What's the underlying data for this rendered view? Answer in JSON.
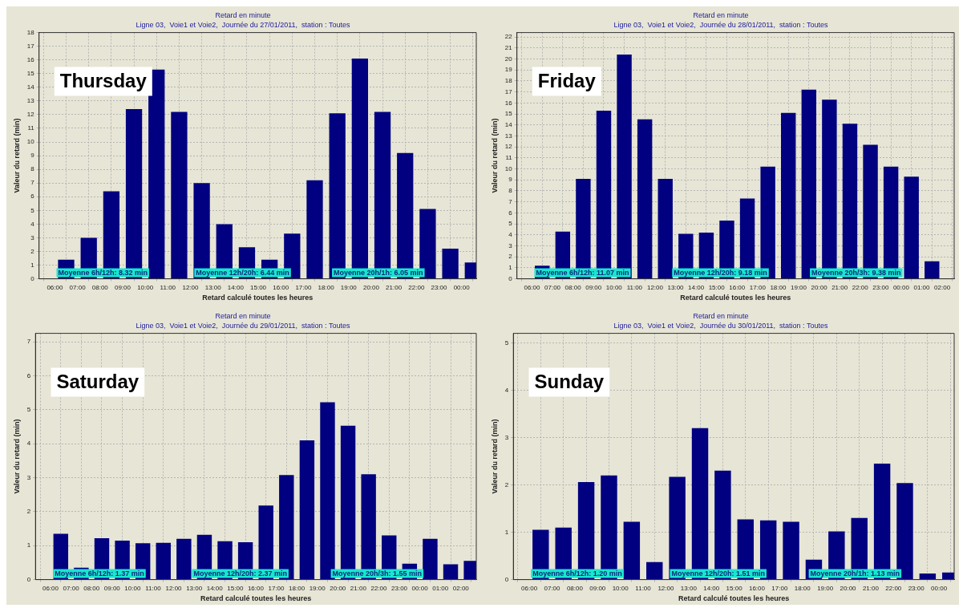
{
  "chart_data": [
    {
      "type": "bar",
      "title": "Retard en minute",
      "subtitle": "Ligne 03,  Voie1 et Voie2,  Journée du 27/01/2011,  station : Toutes",
      "xlabel": "Retard calculé toutes les heures",
      "ylabel": "Valeur du retard (min)",
      "annotations": [
        "Thursday",
        "Moyenne 6h/12h: 8.32 min",
        "Moyenne 12h/20h: 6.44 min",
        "Moyenne 20h/1h: 6.05 min"
      ],
      "color": "#000080",
      "x": [
        "2011-01-27T06:30",
        "2011-01-27T07:30",
        "2011-01-27T08:30",
        "2011-01-27T09:30",
        "2011-01-27T10:30",
        "2011-01-27T11:30",
        "2011-01-27T12:30",
        "2011-01-27T13:30",
        "2011-01-27T14:30",
        "2011-01-27T15:30",
        "2011-01-27T16:30",
        "2011-01-27T17:30",
        "2011-01-27T18:30",
        "2011-01-27T19:30",
        "2011-01-27T20:30",
        "2011-01-27T21:30",
        "2011-01-27T22:30",
        "2011-01-27T23:30",
        "2011-01-28T00:30"
      ],
      "values": [
        1.4,
        3.0,
        6.4,
        12.4,
        15.3,
        12.2,
        7.0,
        4.0,
        2.3,
        1.4,
        3.3,
        7.2,
        12.1,
        16.1,
        12.2,
        9.2,
        5.1,
        2.2,
        1.2
      ],
      "xlim": [
        "2011-01-27T05:18",
        "2011-01-28T00:39"
      ],
      "xticks": [
        {
          "value": "2011-01-27T06:00",
          "label": "06:00"
        },
        {
          "value": "2011-01-27T07:00",
          "label": "07:00"
        },
        {
          "value": "2011-01-27T08:00",
          "label": "08:00"
        },
        {
          "value": "2011-01-27T09:00",
          "label": "09:00"
        },
        {
          "value": "2011-01-27T10:00",
          "label": "10:00"
        },
        {
          "value": "2011-01-27T11:00",
          "label": "11:00"
        },
        {
          "value": "2011-01-27T12:00",
          "label": "12:00"
        },
        {
          "value": "2011-01-27T13:00",
          "label": "13:00"
        },
        {
          "value": "2011-01-27T14:00",
          "label": "14:00"
        },
        {
          "value": "2011-01-27T15:00",
          "label": "15:00"
        },
        {
          "value": "2011-01-27T16:00",
          "label": "16:00"
        },
        {
          "value": "2011-01-27T17:00",
          "label": "17:00"
        },
        {
          "value": "2011-01-27T18:00",
          "label": "18:00"
        },
        {
          "value": "2011-01-27T19:00",
          "label": "19:00"
        },
        {
          "value": "2011-01-27T20:00",
          "label": "20:00"
        },
        {
          "value": "2011-01-27T21:00",
          "label": "21:00"
        },
        {
          "value": "2011-01-27T22:00",
          "label": "22:00"
        },
        {
          "value": "2011-01-27T23:00",
          "label": "23:00"
        },
        {
          "value": "2011-01-28T00:00",
          "label": "00:00"
        }
      ],
      "ylim": [
        0,
        18
      ],
      "yticks": [
        0,
        1,
        2,
        3,
        4,
        5,
        6,
        7,
        8,
        9,
        10,
        11,
        12,
        13,
        14,
        15,
        16,
        17,
        18
      ],
      "grid": true
    },
    {
      "type": "bar",
      "title": "Retard en minute",
      "subtitle": "Ligne 03,  Voie1 et Voie2,  Journée du 28/01/2011,  station : Toutes",
      "xlabel": "Retard calculé toutes les heures",
      "ylabel": "Valeur du retard (min)",
      "annotations": [
        "Friday",
        "Moyenne 6h/12h: 11.07 min",
        "Moyenne 12h/20h: 9.18 min",
        "Moyenne 20h/3h: 9.38 min"
      ],
      "color": "#000080",
      "x": [
        "2011-01-28T06:30",
        "2011-01-28T07:30",
        "2011-01-28T08:30",
        "2011-01-28T09:30",
        "2011-01-28T10:30",
        "2011-01-28T11:30",
        "2011-01-28T12:30",
        "2011-01-28T13:30",
        "2011-01-28T14:30",
        "2011-01-28T15:30",
        "2011-01-28T16:30",
        "2011-01-28T17:30",
        "2011-01-28T18:30",
        "2011-01-28T19:30",
        "2011-01-28T20:30",
        "2011-01-28T21:30",
        "2011-01-28T22:30",
        "2011-01-28T23:30",
        "2011-01-29T00:30",
        "2011-01-29T01:30",
        "2011-01-29T02:30"
      ],
      "values": [
        1.2,
        4.3,
        9.1,
        15.3,
        20.4,
        14.5,
        9.1,
        4.1,
        4.2,
        5.3,
        7.3,
        10.2,
        15.1,
        17.2,
        16.3,
        14.1,
        12.2,
        10.2,
        9.3,
        1.6,
        0.05
      ],
      "xlim": [
        "2011-01-28T05:16",
        "2011-01-29T02:35"
      ],
      "xticks": [
        {
          "value": "2011-01-28T06:00",
          "label": "06:00"
        },
        {
          "value": "2011-01-28T07:00",
          "label": "07:00"
        },
        {
          "value": "2011-01-28T08:00",
          "label": "08:00"
        },
        {
          "value": "2011-01-28T09:00",
          "label": "09:00"
        },
        {
          "value": "2011-01-28T10:00",
          "label": "10:00"
        },
        {
          "value": "2011-01-28T11:00",
          "label": "11:00"
        },
        {
          "value": "2011-01-28T12:00",
          "label": "12:00"
        },
        {
          "value": "2011-01-28T13:00",
          "label": "13:00"
        },
        {
          "value": "2011-01-28T14:00",
          "label": "14:00"
        },
        {
          "value": "2011-01-28T15:00",
          "label": "15:00"
        },
        {
          "value": "2011-01-28T16:00",
          "label": "16:00"
        },
        {
          "value": "2011-01-28T17:00",
          "label": "17:00"
        },
        {
          "value": "2011-01-28T18:00",
          "label": "18:00"
        },
        {
          "value": "2011-01-28T19:00",
          "label": "19:00"
        },
        {
          "value": "2011-01-28T20:00",
          "label": "20:00"
        },
        {
          "value": "2011-01-28T21:00",
          "label": "21:00"
        },
        {
          "value": "2011-01-28T22:00",
          "label": "22:00"
        },
        {
          "value": "2011-01-28T23:00",
          "label": "23:00"
        },
        {
          "value": "2011-01-29T00:00",
          "label": "00:00"
        },
        {
          "value": "2011-01-29T01:00",
          "label": "01:00"
        },
        {
          "value": "2011-01-29T02:00",
          "label": "02:00"
        }
      ],
      "ylim": [
        0,
        22.4
      ],
      "yticks": [
        0,
        1,
        2,
        3,
        4,
        5,
        6,
        7,
        8,
        9,
        10,
        11,
        12,
        13,
        14,
        15,
        16,
        17,
        18,
        19,
        20,
        21,
        22
      ],
      "grid": true
    },
    {
      "type": "bar",
      "title": "Retard en minute",
      "subtitle": "Ligne 03,  Voie1 et Voie2,  Journée du 29/01/2011,  station : Toutes",
      "xlabel": "Retard calculé toutes les heures",
      "ylabel": "Valeur du retard (min)",
      "annotations": [
        "Saturday",
        "Moyenne 6h/12h: 1.37 min",
        "Moyenne 12h/20h: 2.37 min",
        "Moyenne 20h/3h: 1.55 min"
      ],
      "color": "#000080",
      "x": [
        "2011-01-29T06:30",
        "2011-01-29T07:30",
        "2011-01-29T08:30",
        "2011-01-29T09:30",
        "2011-01-29T10:30",
        "2011-01-29T11:30",
        "2011-01-29T12:30",
        "2011-01-29T13:30",
        "2011-01-29T14:30",
        "2011-01-29T15:30",
        "2011-01-29T16:30",
        "2011-01-29T17:30",
        "2011-01-29T18:30",
        "2011-01-29T19:30",
        "2011-01-29T20:30",
        "2011-01-29T21:30",
        "2011-01-29T22:30",
        "2011-01-29T23:30",
        "2011-01-30T00:30",
        "2011-01-30T01:30",
        "2011-01-30T02:30"
      ],
      "values": [
        1.35,
        0.35,
        1.22,
        1.15,
        1.07,
        1.08,
        1.2,
        1.32,
        1.13,
        1.1,
        2.18,
        3.08,
        4.1,
        5.22,
        4.53,
        3.1,
        1.3,
        0.47,
        1.2,
        0.45,
        0.55
      ],
      "xlim": [
        "2011-01-29T05:16",
        "2011-01-30T02:45"
      ],
      "xticks": [
        {
          "value": "2011-01-29T06:00",
          "label": "06:00"
        },
        {
          "value": "2011-01-29T07:00",
          "label": "07:00"
        },
        {
          "value": "2011-01-29T08:00",
          "label": "08:00"
        },
        {
          "value": "2011-01-29T09:00",
          "label": "09:00"
        },
        {
          "value": "2011-01-29T10:00",
          "label": "10:00"
        },
        {
          "value": "2011-01-29T11:00",
          "label": "11:00"
        },
        {
          "value": "2011-01-29T12:00",
          "label": "12:00"
        },
        {
          "value": "2011-01-29T13:00",
          "label": "13:00"
        },
        {
          "value": "2011-01-29T14:00",
          "label": "14:00"
        },
        {
          "value": "2011-01-29T15:00",
          "label": "15:00"
        },
        {
          "value": "2011-01-29T16:00",
          "label": "16:00"
        },
        {
          "value": "2011-01-29T17:00",
          "label": "17:00"
        },
        {
          "value": "2011-01-29T18:00",
          "label": "18:00"
        },
        {
          "value": "2011-01-29T19:00",
          "label": "19:00"
        },
        {
          "value": "2011-01-29T20:00",
          "label": "20:00"
        },
        {
          "value": "2011-01-29T21:00",
          "label": "21:00"
        },
        {
          "value": "2011-01-29T22:00",
          "label": "22:00"
        },
        {
          "value": "2011-01-29T23:00",
          "label": "23:00"
        },
        {
          "value": "2011-01-30T00:00",
          "label": "00:00"
        },
        {
          "value": "2011-01-30T01:00",
          "label": "01:00"
        },
        {
          "value": "2011-01-30T02:00",
          "label": "02:00"
        }
      ],
      "ylim": [
        0,
        7.25
      ],
      "yticks": [
        0,
        1,
        2,
        3,
        4,
        5,
        6,
        7
      ],
      "grid": true
    },
    {
      "type": "bar",
      "title": "Retard en minute",
      "subtitle": "Ligne 03,  Voie1 et Voie2,  Journée du 30/01/2011,  station : Toutes",
      "xlabel": "Retard calculé toutes les heures",
      "ylabel": "Valeur du retard (min)",
      "annotations": [
        "Sunday",
        "Moyenne 6h/12h: 1.20 min",
        "Moyenne 12h/20h: 1.51 min",
        "Moyenne 20h/1h: 1.13 min"
      ],
      "color": "#000080",
      "x": [
        "2011-01-30T06:30",
        "2011-01-30T07:30",
        "2011-01-30T08:30",
        "2011-01-30T09:30",
        "2011-01-30T10:30",
        "2011-01-30T11:30",
        "2011-01-30T12:30",
        "2011-01-30T13:30",
        "2011-01-30T14:30",
        "2011-01-30T15:30",
        "2011-01-30T16:30",
        "2011-01-30T17:30",
        "2011-01-30T18:30",
        "2011-01-30T19:30",
        "2011-01-30T20:30",
        "2011-01-30T21:30",
        "2011-01-30T22:30",
        "2011-01-30T23:30",
        "2011-01-31T00:30"
      ],
      "values": [
        1.05,
        1.1,
        2.06,
        2.2,
        1.22,
        0.37,
        2.17,
        3.2,
        2.3,
        1.27,
        1.25,
        1.22,
        0.42,
        1.02,
        1.3,
        2.45,
        2.04,
        0.13,
        0.15
      ],
      "xlim": [
        "2011-01-30T05:18",
        "2011-01-31T00:40"
      ],
      "xticks": [
        {
          "value": "2011-01-30T06:00",
          "label": "06:00"
        },
        {
          "value": "2011-01-30T07:00",
          "label": "07:00"
        },
        {
          "value": "2011-01-30T08:00",
          "label": "08:00"
        },
        {
          "value": "2011-01-30T09:00",
          "label": "09:00"
        },
        {
          "value": "2011-01-30T10:00",
          "label": "10:00"
        },
        {
          "value": "2011-01-30T11:00",
          "label": "11:00"
        },
        {
          "value": "2011-01-30T12:00",
          "label": "12:00"
        },
        {
          "value": "2011-01-30T13:00",
          "label": "13:00"
        },
        {
          "value": "2011-01-30T14:00",
          "label": "14:00"
        },
        {
          "value": "2011-01-30T15:00",
          "label": "15:00"
        },
        {
          "value": "2011-01-30T16:00",
          "label": "16:00"
        },
        {
          "value": "2011-01-30T17:00",
          "label": "17:00"
        },
        {
          "value": "2011-01-30T18:00",
          "label": "18:00"
        },
        {
          "value": "2011-01-30T19:00",
          "label": "19:00"
        },
        {
          "value": "2011-01-30T20:00",
          "label": "20:00"
        },
        {
          "value": "2011-01-30T21:00",
          "label": "21:00"
        },
        {
          "value": "2011-01-30T22:00",
          "label": "22:00"
        },
        {
          "value": "2011-01-30T23:00",
          "label": "23:00"
        },
        {
          "value": "2011-01-31T00:00",
          "label": "00:00"
        }
      ],
      "ylim": [
        0,
        5.2
      ],
      "yticks": [
        0,
        1,
        2,
        3,
        4,
        5
      ],
      "grid": true
    }
  ]
}
